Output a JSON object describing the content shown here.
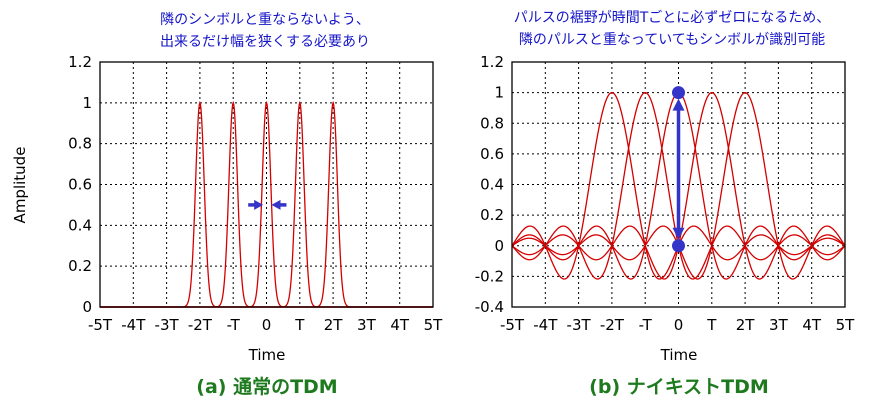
{
  "chart_data": [
    {
      "type": "line",
      "panel": "left",
      "caption": "(a) 通常のTDM",
      "annotation_lines": [
        "隣のシンボルと重ならないよう、",
        "出来るだけ幅を狭くする必要あり"
      ],
      "ylabel": "Amplitude",
      "xlabel": "Time",
      "xlim": [
        -5,
        5
      ],
      "ylim": [
        0,
        1.2
      ],
      "x_ticks": [
        -5,
        -4,
        -3,
        -2,
        -1,
        0,
        1,
        2,
        3,
        4,
        5
      ],
      "x_tick_labels": [
        "-5T",
        "-4T",
        "-3T",
        "-2T",
        "-T",
        "0",
        "T",
        "2T",
        "3T",
        "4T",
        "5T"
      ],
      "y_ticks": [
        0,
        0.2,
        0.4,
        0.6,
        0.8,
        1,
        1.2
      ],
      "y_tick_labels": [
        "0",
        "0.2",
        "0.4",
        "0.6",
        "0.8",
        "1",
        "1.2"
      ],
      "grid": true,
      "pulse_shape": "narrow-gaussian",
      "pulse_centers": [
        -2,
        -1,
        0,
        1,
        2
      ],
      "pulse_peak": 1,
      "pulse_color": "#d40000",
      "squeeze_arrows_y": 0.5,
      "marker_color": "#3434c8"
    },
    {
      "type": "line",
      "panel": "right",
      "caption": "(b) ナイキストTDM",
      "annotation_lines": [
        "パルスの裾野が時間Tごとに必ずゼロになるため、",
        "隣のパルスと重なっていてもシンボルが識別可能"
      ],
      "xlabel": "Time",
      "xlim": [
        -5,
        5
      ],
      "ylim": [
        -0.4,
        1.2
      ],
      "x_ticks": [
        -5,
        -4,
        -3,
        -2,
        -1,
        0,
        1,
        2,
        3,
        4,
        5
      ],
      "x_tick_labels": [
        "-5T",
        "-4T",
        "-3T",
        "-2T",
        "-T",
        "0",
        "T",
        "2T",
        "3T",
        "4T",
        "5T"
      ],
      "y_ticks": [
        -0.4,
        -0.2,
        0,
        0.2,
        0.4,
        0.6,
        0.8,
        1,
        1.2
      ],
      "y_tick_labels": [
        "-0.4",
        "-0.2",
        "0",
        "0.2",
        "0.4",
        "0.6",
        "0.8",
        "1",
        "1.2"
      ],
      "grid": true,
      "pulse_shape": "sinc",
      "pulse_centers": [
        -2,
        -1,
        0,
        1,
        2
      ],
      "pulse_peak": 1,
      "pulse_color": "#d40000",
      "sample_marker": {
        "x": 0,
        "y_top": 1,
        "y_bottom": 0
      },
      "marker_color": "#3434c8"
    }
  ]
}
